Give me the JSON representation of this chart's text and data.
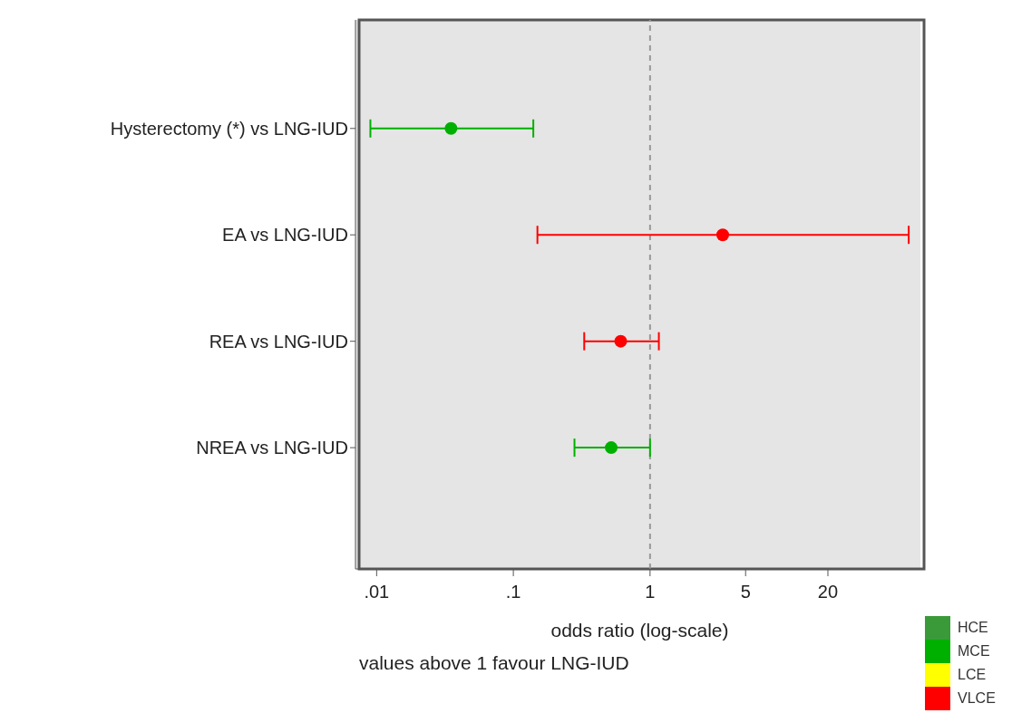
{
  "chart_data": {
    "type": "scatter",
    "orientation": "horizontal",
    "xlabel": "odds ratio (log-scale)",
    "annotations": [
      "values above 1 favour LNG-IUD"
    ],
    "categories": [
      "Hysterectomy (*) vs LNG-IUD",
      "EA vs LNG-IUD",
      "REA vs LNG-IUD",
      "NREA vs LNG-IUD"
    ],
    "series": [
      {
        "name": "HCE",
        "color": "#3a9a3a",
        "values": [
          null,
          null,
          null,
          null
        ]
      },
      {
        "name": "MCE",
        "color": "#00b000",
        "values": [
          0.035,
          null,
          null,
          0.52
        ],
        "errors": [
          [
            0.009,
            0.14
          ],
          null,
          null,
          [
            0.28,
            1.0
          ]
        ]
      },
      {
        "name": "LCE",
        "color": "#ffff00",
        "values": [
          null,
          null,
          null,
          null
        ]
      },
      {
        "name": "VLCE",
        "color": "#ff0000",
        "values": [
          null,
          3.4,
          0.61,
          null
        ],
        "errors": [
          null,
          [
            0.15,
            78
          ],
          [
            0.33,
            1.16
          ],
          null
        ]
      }
    ],
    "log": "x",
    "xlim": [
      0.007,
      95
    ],
    "xticks": [
      {
        "value": 0.01,
        "label": ".01"
      },
      {
        "value": 0.1,
        "label": ".1"
      },
      1,
      5,
      20
    ],
    "ref_lines": [
      {
        "axis": "x",
        "value": 1,
        "color": "#999999",
        "line_style": "dashed"
      }
    ],
    "marker": "circle",
    "legend": "bottom right"
  }
}
